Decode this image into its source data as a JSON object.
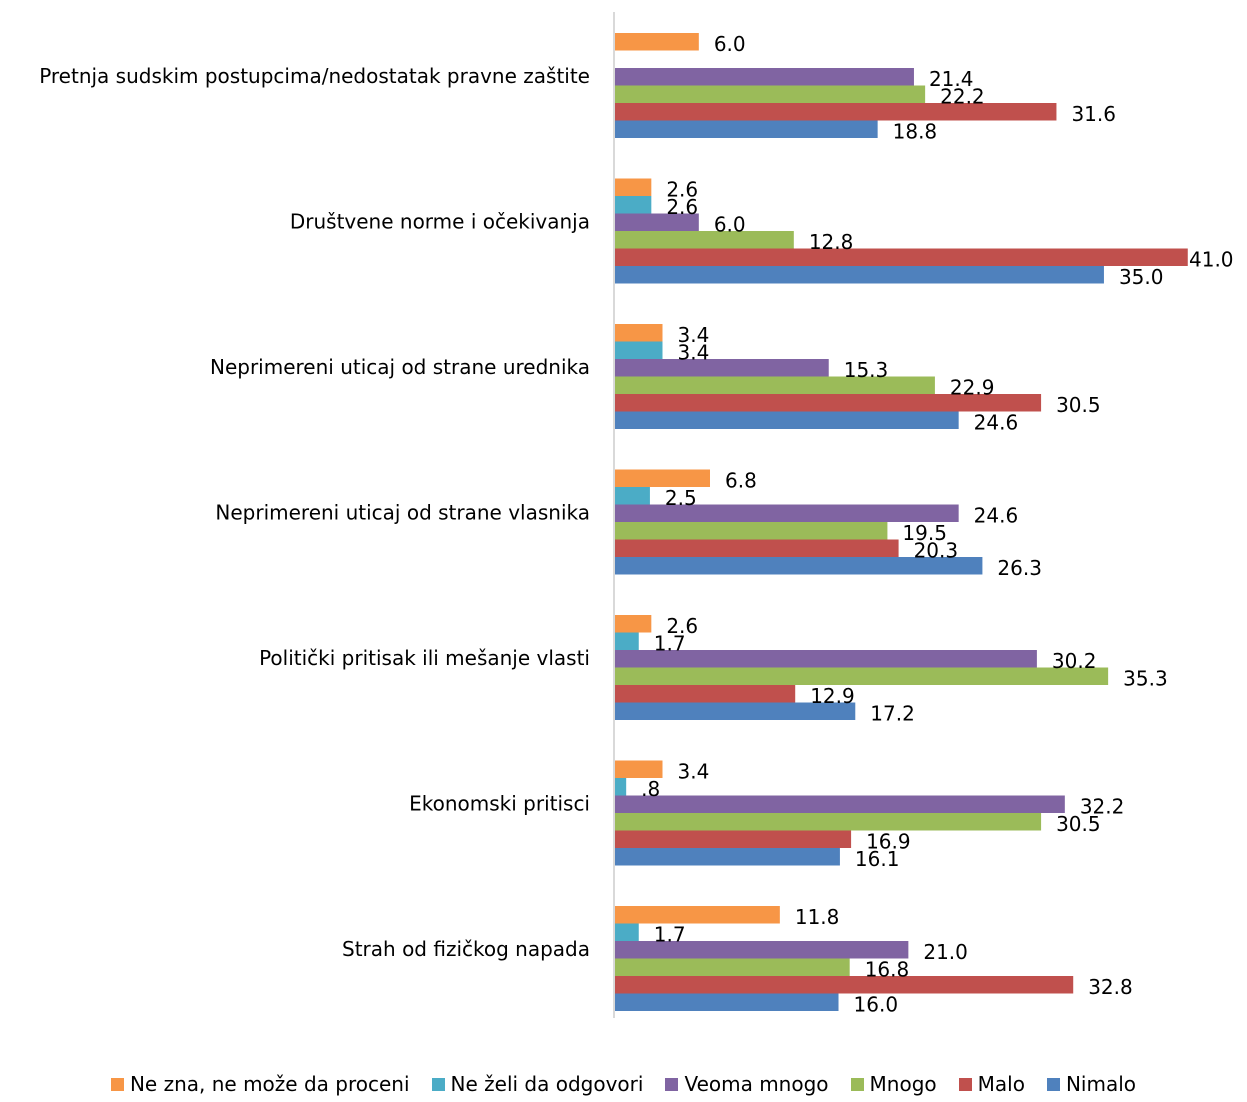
{
  "chart_data": {
    "type": "bar",
    "orientation": "horizontal",
    "categories": [
      "Pretnja sudskim postupcima/nedostatak pravne zaštite",
      "Društvene norme i očekivanja",
      "Neprimereni uticaj od strane urednika",
      "Neprimereni uticaj od strane vlasnika",
      "Politički pritisak ili mešanje vlasti",
      "Ekonomski pritisci",
      "Strah od fizičkog napada"
    ],
    "series": [
      {
        "name": "Ne zna, ne može da proceni",
        "color": "#f79646",
        "values": [
          6.0,
          2.6,
          3.4,
          6.8,
          2.6,
          3.4,
          11.8
        ],
        "labels": [
          "6.0",
          "2.6",
          "3.4",
          "6.8",
          "2.6",
          "3.4",
          "11.8"
        ]
      },
      {
        "name": "Ne želi da odgovori",
        "color": "#4bacc6",
        "values": [
          null,
          2.6,
          3.4,
          2.5,
          1.7,
          0.8,
          1.7
        ],
        "labels": [
          "",
          "2.6",
          "3.4",
          "2.5",
          "1.7",
          ".8",
          "1.7"
        ]
      },
      {
        "name": "Veoma mnogo",
        "color": "#8064a2",
        "values": [
          21.4,
          6.0,
          15.3,
          24.6,
          30.2,
          32.2,
          21.0
        ],
        "labels": [
          "21.4",
          "6.0",
          "15.3",
          "24.6",
          "30.2",
          "32.2",
          "21.0"
        ]
      },
      {
        "name": "Mnogo",
        "color": "#9bbb59",
        "values": [
          22.2,
          12.8,
          22.9,
          19.5,
          35.3,
          30.5,
          16.8
        ],
        "labels": [
          "22.2",
          "12.8",
          "22.9",
          "19.5",
          "35.3",
          "30.5",
          "16.8"
        ]
      },
      {
        "name": "Malo",
        "color": "#c0504d",
        "values": [
          31.6,
          41.0,
          30.5,
          20.3,
          12.9,
          16.9,
          32.8
        ],
        "labels": [
          "31.6",
          "41.0",
          "30.5",
          "20.3",
          "12.9",
          "16.9",
          "32.8"
        ]
      },
      {
        "name": "Nimalo",
        "color": "#4f81bd",
        "values": [
          18.8,
          35.0,
          24.6,
          26.3,
          17.2,
          16.1,
          16.0
        ],
        "labels": [
          "18.8",
          "35.0",
          "24.6",
          "26.3",
          "17.2",
          "16.1",
          "16.0"
        ]
      }
    ],
    "xlim": [
      0,
      45
    ],
    "grid": false,
    "legend_position": "bottom"
  }
}
